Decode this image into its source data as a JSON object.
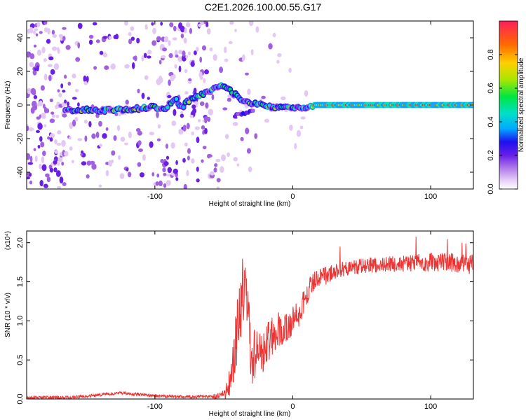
{
  "title": "C2E1.2026.100.00.55.G17",
  "chart_data": [
    {
      "type": "heatmap",
      "xlabel": "Height of straight line (km)",
      "ylabel": "Frequency (Hz)",
      "xlim": [
        -193,
        131
      ],
      "ylim": [
        -50,
        50
      ],
      "xticks": [
        -100,
        0,
        100
      ],
      "xtick_labels": [
        "-100",
        "0",
        "100"
      ],
      "yticks": [
        -40,
        -20,
        0,
        20,
        40
      ],
      "ytick_labels": [
        "-40",
        "-20",
        "0",
        "20",
        "40"
      ],
      "colorbar": {
        "label": "Normalized spectral amplitude",
        "range": [
          0,
          1
        ],
        "ticks": [
          0.0,
          0.2,
          0.4,
          0.6,
          0.8
        ],
        "tick_labels": [
          "0.0",
          "0.2",
          "0.4",
          "0.6",
          "0.8"
        ],
        "colors": [
          "#ffffff",
          "#e4c8f4",
          "#a060e0",
          "#6a1ee6",
          "#1e10f0",
          "#00aaff",
          "#00e0c8",
          "#00e640",
          "#a8e600",
          "#ffd000",
          "#ff6a00",
          "#ff1e1e"
        ]
      },
      "ridge": {
        "x": [
          -160,
          -145,
          -130,
          -120,
          -110,
          -100,
          -95,
          -90,
          -85,
          -80,
          -75,
          -70,
          -65,
          -60,
          -55,
          -50,
          -45,
          -40,
          -35,
          -30,
          -25,
          -20,
          -15,
          -10,
          -5,
          0,
          5,
          10,
          15,
          30,
          60,
          90,
          131
        ],
        "y": [
          -3,
          -3,
          -3,
          -3,
          -2,
          -1,
          -3,
          0,
          3,
          -1,
          3,
          6,
          7,
          9,
          10,
          11,
          8,
          5,
          2,
          0,
          1,
          0,
          -2,
          -1,
          -1,
          -2,
          -1,
          -2,
          0,
          0,
          0,
          0,
          0
        ]
      }
    },
    {
      "type": "line",
      "xlabel": "Height of straight line (km)",
      "ylabel": "SNR (10 * v/v)",
      "y_multiplier": "(x10⁴)",
      "xlim": [
        -193,
        131
      ],
      "ylim": [
        0,
        2.15
      ],
      "xticks": [
        -100,
        0,
        100
      ],
      "xtick_labels": [
        "-100",
        "0",
        "100"
      ],
      "yticks": [
        0.0,
        0.5,
        1.0,
        1.5,
        2.0
      ],
      "ytick_labels": [
        "0.0",
        "0.5",
        "1.0",
        "1.5",
        "2.0"
      ],
      "line_color": "#ee3333",
      "envelope": {
        "x": [
          -193,
          -160,
          -140,
          -125,
          -100,
          -80,
          -55,
          -48,
          -45,
          -42,
          -40,
          -38,
          -35,
          -30,
          -28,
          -25,
          -22,
          -20,
          -15,
          -10,
          -5,
          0,
          5,
          8,
          10,
          15,
          20,
          30,
          40,
          60,
          80,
          100,
          115,
          131
        ],
        "y": [
          0.02,
          0.02,
          0.05,
          0.08,
          0.04,
          0.03,
          0.03,
          0.1,
          0.3,
          0.6,
          0.9,
          1.2,
          1.5,
          0.5,
          0.6,
          0.55,
          0.6,
          0.7,
          0.8,
          0.9,
          0.9,
          1.0,
          1.1,
          1.25,
          1.35,
          1.5,
          1.55,
          1.62,
          1.68,
          1.72,
          1.73,
          1.75,
          1.75,
          1.72
        ]
      },
      "noise": {
        "x": [
          -193,
          -60,
          -50,
          -40,
          -35,
          -30,
          -20,
          -10,
          0,
          10,
          30,
          60,
          131
        ],
        "amplitude": [
          0.02,
          0.02,
          0.05,
          0.45,
          0.5,
          0.35,
          0.28,
          0.22,
          0.18,
          0.15,
          0.1,
          0.1,
          0.13
        ]
      }
    }
  ]
}
